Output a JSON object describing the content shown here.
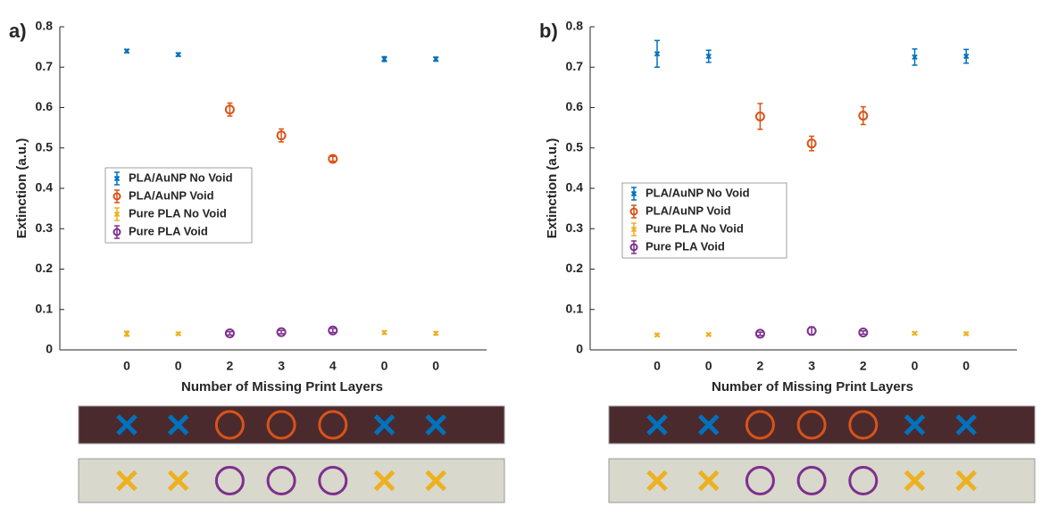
{
  "chart_data": [
    {
      "type": "errorbar",
      "panel_label": "a)",
      "ylabel": "Extinction (a.u.)",
      "xlabel": "Number of Missing Print Layers",
      "categories": [
        "0",
        "0",
        "2",
        "3",
        "4",
        "0",
        "0"
      ],
      "ylim": [
        0,
        0.8
      ],
      "yticks": [
        0,
        0.1,
        0.2,
        0.3,
        0.4,
        0.5,
        0.6,
        0.7,
        0.8
      ],
      "grid": false,
      "legend": "left",
      "series": [
        {
          "name": "PLA/AuNP No Void",
          "color": "#0072bd",
          "marker": "x",
          "values": [
            0.74,
            0.731,
            null,
            null,
            null,
            0.72,
            0.72
          ],
          "errors": [
            0.004,
            0.004,
            null,
            null,
            null,
            0.006,
            0.005
          ]
        },
        {
          "name": "PLA/AuNP Void",
          "color": "#d95319",
          "marker": "o",
          "values": [
            null,
            null,
            0.595,
            0.531,
            0.473,
            null,
            null
          ],
          "errors": [
            null,
            null,
            0.016,
            0.016,
            0.006,
            null,
            null
          ]
        },
        {
          "name": "Pure PLA No Void",
          "color": "#edb120",
          "marker": "x",
          "values": [
            0.04,
            0.04,
            null,
            null,
            null,
            0.043,
            0.041
          ],
          "errors": [
            0.006,
            0.003,
            null,
            null,
            null,
            0.004,
            0.004
          ]
        },
        {
          "name": "Pure PLA Void",
          "color": "#7e2f8e",
          "marker": "o",
          "values": [
            null,
            null,
            0.041,
            0.044,
            0.048,
            null,
            null
          ],
          "errors": [
            null,
            null,
            0.004,
            0.004,
            0.005,
            null,
            null
          ]
        }
      ]
    },
    {
      "type": "errorbar",
      "panel_label": "b)",
      "ylabel": "Extinction (a.u.)",
      "xlabel": "Number of Missing Print Layers",
      "categories": [
        "0",
        "0",
        "2",
        "3",
        "2",
        "0",
        "0"
      ],
      "ylim": [
        0,
        0.8
      ],
      "yticks": [
        0,
        0.1,
        0.2,
        0.3,
        0.4,
        0.5,
        0.6,
        0.7,
        0.8
      ],
      "grid": false,
      "legend": "left",
      "series": [
        {
          "name": "PLA/AuNP No Void",
          "color": "#0072bd",
          "marker": "x",
          "values": [
            0.733,
            0.727,
            null,
            null,
            null,
            0.725,
            0.727
          ],
          "errors": [
            0.033,
            0.015,
            null,
            null,
            null,
            0.02,
            0.017
          ]
        },
        {
          "name": "PLA/AuNP Void",
          "color": "#d95319",
          "marker": "o",
          "values": [
            null,
            null,
            0.578,
            0.511,
            0.58,
            null,
            null
          ],
          "errors": [
            null,
            null,
            0.032,
            0.018,
            0.022,
            null,
            null
          ]
        },
        {
          "name": "Pure PLA No Void",
          "color": "#edb120",
          "marker": "x",
          "values": [
            0.037,
            0.038,
            null,
            null,
            null,
            0.041,
            0.04
          ],
          "errors": [
            0.003,
            0.003,
            null,
            null,
            null,
            0.003,
            0.003
          ]
        },
        {
          "name": "Pure PLA Void",
          "color": "#7e2f8e",
          "marker": "o",
          "values": [
            null,
            null,
            0.04,
            0.047,
            0.043,
            null,
            null
          ],
          "errors": [
            null,
            null,
            0.004,
            0.01,
            0.004,
            null,
            null
          ]
        }
      ]
    }
  ]
}
